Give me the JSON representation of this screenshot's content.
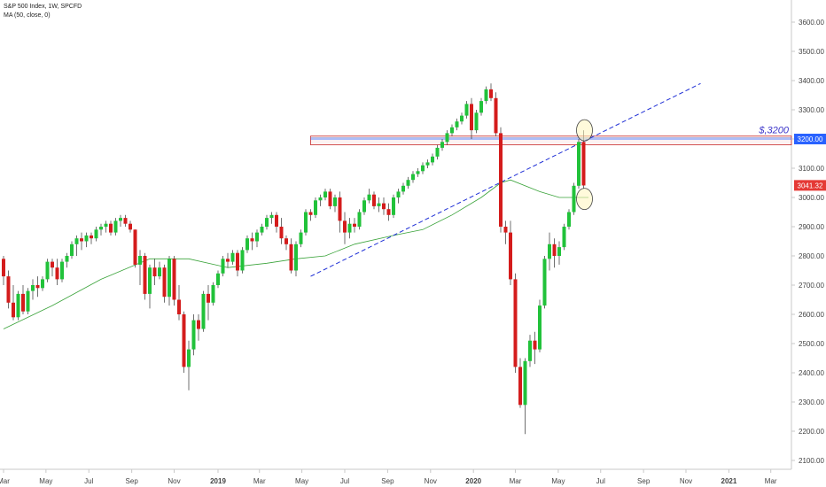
{
  "chart_data": {
    "type": "candlestick",
    "legend_lines": [
      "S&P 500 Index, 1W, SPCFD",
      "MA (50, close, 0)"
    ],
    "y_axis": {
      "range": [
        2050,
        3690
      ],
      "ticks": [
        2100,
        2200,
        2300,
        2400,
        2500,
        2600,
        2700,
        2800,
        2900,
        3000,
        3100,
        3200,
        3300,
        3400,
        3500,
        3600
      ],
      "tick_labels": [
        "2100.00",
        "2200.00",
        "2300.00",
        "2400.00",
        "2500.00",
        "2600.00",
        "2700.00",
        "2800.00",
        "2900.00",
        "3000.00",
        "3100.00",
        "3200.00",
        "3300.00",
        "3400.00",
        "3500.00",
        "3600.00"
      ]
    },
    "x_axis": {
      "labels": [
        {
          "text": "Mar",
          "week": 0,
          "bold": false
        },
        {
          "text": "May",
          "week": 8.7,
          "bold": false
        },
        {
          "text": "Jul",
          "week": 17.5,
          "bold": false
        },
        {
          "text": "Sep",
          "week": 26.3,
          "bold": false
        },
        {
          "text": "Nov",
          "week": 35,
          "bold": false
        },
        {
          "text": "2019",
          "week": 44,
          "bold": true
        },
        {
          "text": "Mar",
          "week": 52.5,
          "bold": false
        },
        {
          "text": "May",
          "week": 61.2,
          "bold": false
        },
        {
          "text": "Jul",
          "week": 70,
          "bold": false
        },
        {
          "text": "Sep",
          "week": 78.8,
          "bold": false
        },
        {
          "text": "Nov",
          "week": 87.6,
          "bold": false
        },
        {
          "text": "2020",
          "week": 96.4,
          "bold": true
        },
        {
          "text": "Mar",
          "week": 105,
          "bold": false
        },
        {
          "text": "May",
          "week": 113.8,
          "bold": false
        },
        {
          "text": "Jul",
          "week": 122.5,
          "bold": false
        },
        {
          "text": "Sep",
          "week": 131.3,
          "bold": false
        },
        {
          "text": "Nov",
          "week": 140,
          "bold": false
        },
        {
          "text": "2021",
          "week": 148.8,
          "bold": true
        },
        {
          "text": "Mar",
          "week": 157.4,
          "bold": false
        }
      ]
    },
    "candles": [
      [
        2790,
        2800,
        2700,
        2730
      ],
      [
        2730,
        2750,
        2620,
        2640
      ],
      [
        2640,
        2700,
        2580,
        2590
      ],
      [
        2590,
        2680,
        2580,
        2670
      ],
      [
        2670,
        2700,
        2600,
        2610
      ],
      [
        2610,
        2690,
        2600,
        2680
      ],
      [
        2680,
        2720,
        2650,
        2700
      ],
      [
        2700,
        2730,
        2660,
        2690
      ],
      [
        2690,
        2730,
        2680,
        2720
      ],
      [
        2720,
        2790,
        2710,
        2780
      ],
      [
        2780,
        2790,
        2730,
        2760
      ],
      [
        2760,
        2790,
        2700,
        2720
      ],
      [
        2720,
        2790,
        2710,
        2780
      ],
      [
        2780,
        2810,
        2760,
        2800
      ],
      [
        2800,
        2850,
        2790,
        2840
      ],
      [
        2840,
        2870,
        2800,
        2860
      ],
      [
        2860,
        2880,
        2820,
        2850
      ],
      [
        2850,
        2880,
        2830,
        2870
      ],
      [
        2870,
        2880,
        2840,
        2860
      ],
      [
        2860,
        2900,
        2850,
        2890
      ],
      [
        2890,
        2910,
        2870,
        2900
      ],
      [
        2900,
        2920,
        2880,
        2910
      ],
      [
        2910,
        2920,
        2870,
        2880
      ],
      [
        2880,
        2930,
        2870,
        2920
      ],
      [
        2920,
        2940,
        2900,
        2930
      ],
      [
        2930,
        2940,
        2900,
        2910
      ],
      [
        2910,
        2920,
        2880,
        2890
      ],
      [
        2890,
        2890,
        2760,
        2770
      ],
      [
        2770,
        2820,
        2700,
        2800
      ],
      [
        2800,
        2810,
        2650,
        2670
      ],
      [
        2670,
        2770,
        2620,
        2760
      ],
      [
        2760,
        2790,
        2700,
        2730
      ],
      [
        2730,
        2780,
        2720,
        2760
      ],
      [
        2760,
        2770,
        2640,
        2660
      ],
      [
        2660,
        2800,
        2630,
        2790
      ],
      [
        2790,
        2800,
        2630,
        2650
      ],
      [
        2650,
        2700,
        2580,
        2600
      ],
      [
        2600,
        2610,
        2400,
        2420
      ],
      [
        2420,
        2510,
        2340,
        2480
      ],
      [
        2480,
        2600,
        2460,
        2580
      ],
      [
        2580,
        2600,
        2510,
        2550
      ],
      [
        2550,
        2680,
        2540,
        2670
      ],
      [
        2670,
        2700,
        2580,
        2640
      ],
      [
        2640,
        2710,
        2630,
        2700
      ],
      [
        2700,
        2750,
        2690,
        2740
      ],
      [
        2740,
        2800,
        2730,
        2790
      ],
      [
        2790,
        2810,
        2760,
        2780
      ],
      [
        2780,
        2820,
        2770,
        2810
      ],
      [
        2810,
        2820,
        2730,
        2750
      ],
      [
        2750,
        2830,
        2740,
        2820
      ],
      [
        2820,
        2870,
        2810,
        2860
      ],
      [
        2860,
        2880,
        2820,
        2850
      ],
      [
        2850,
        2890,
        2830,
        2880
      ],
      [
        2880,
        2910,
        2870,
        2900
      ],
      [
        2900,
        2940,
        2890,
        2930
      ],
      [
        2930,
        2950,
        2910,
        2940
      ],
      [
        2940,
        2950,
        2880,
        2900
      ],
      [
        2900,
        2930,
        2840,
        2860
      ],
      [
        2860,
        2870,
        2820,
        2840
      ],
      [
        2840,
        2860,
        2740,
        2750
      ],
      [
        2750,
        2850,
        2730,
        2840
      ],
      [
        2840,
        2890,
        2830,
        2880
      ],
      [
        2880,
        2960,
        2870,
        2950
      ],
      [
        2950,
        2960,
        2920,
        2940
      ],
      [
        2940,
        3000,
        2930,
        2990
      ],
      [
        2990,
        3010,
        2970,
        3000
      ],
      [
        3000,
        3030,
        2990,
        3020
      ],
      [
        3020,
        3030,
        2960,
        2970
      ],
      [
        2970,
        3010,
        2950,
        3000
      ],
      [
        3000,
        3020,
        2880,
        2920
      ],
      [
        2920,
        2950,
        2840,
        2880
      ],
      [
        2880,
        2930,
        2860,
        2910
      ],
      [
        2910,
        2930,
        2880,
        2900
      ],
      [
        2900,
        2960,
        2890,
        2950
      ],
      [
        2950,
        3000,
        2940,
        2990
      ],
      [
        2990,
        3030,
        2980,
        3010
      ],
      [
        3010,
        3020,
        2960,
        2970
      ],
      [
        2970,
        3000,
        2950,
        2980
      ],
      [
        2980,
        3000,
        2940,
        2960
      ],
      [
        2960,
        2980,
        2920,
        2940
      ],
      [
        2940,
        3010,
        2930,
        3000
      ],
      [
        3000,
        3030,
        2980,
        3020
      ],
      [
        3020,
        3050,
        3010,
        3040
      ],
      [
        3040,
        3070,
        3030,
        3060
      ],
      [
        3060,
        3090,
        3050,
        3080
      ],
      [
        3080,
        3100,
        3070,
        3090
      ],
      [
        3090,
        3120,
        3080,
        3110
      ],
      [
        3110,
        3130,
        3100,
        3120
      ],
      [
        3120,
        3150,
        3110,
        3140
      ],
      [
        3140,
        3180,
        3130,
        3170
      ],
      [
        3170,
        3200,
        3160,
        3190
      ],
      [
        3190,
        3230,
        3180,
        3220
      ],
      [
        3220,
        3250,
        3210,
        3240
      ],
      [
        3240,
        3270,
        3230,
        3260
      ],
      [
        3260,
        3290,
        3250,
        3280
      ],
      [
        3280,
        3330,
        3270,
        3320
      ],
      [
        3320,
        3340,
        3200,
        3230
      ],
      [
        3230,
        3300,
        3220,
        3290
      ],
      [
        3290,
        3340,
        3280,
        3330
      ],
      [
        3330,
        3380,
        3320,
        3370
      ],
      [
        3370,
        3390,
        3330,
        3340
      ],
      [
        3340,
        3360,
        3210,
        3220
      ],
      [
        3220,
        3240,
        2880,
        2900
      ],
      [
        2900,
        2920,
        2840,
        2880
      ],
      [
        2880,
        2920,
        2700,
        2720
      ],
      [
        2720,
        2740,
        2400,
        2420
      ],
      [
        2420,
        2450,
        2280,
        2290
      ],
      [
        2290,
        2450,
        2190,
        2440
      ],
      [
        2440,
        2530,
        2420,
        2510
      ],
      [
        2510,
        2540,
        2430,
        2480
      ],
      [
        2480,
        2650,
        2470,
        2630
      ],
      [
        2630,
        2800,
        2620,
        2790
      ],
      [
        2790,
        2880,
        2750,
        2840
      ],
      [
        2840,
        2860,
        2760,
        2800
      ],
      [
        2800,
        2850,
        2770,
        2830
      ],
      [
        2830,
        2910,
        2820,
        2900
      ],
      [
        2900,
        2960,
        2890,
        2950
      ],
      [
        2950,
        3050,
        2940,
        3040
      ],
      [
        3040,
        3200,
        3030,
        3190
      ],
      [
        3190,
        3230,
        3030,
        3041
      ]
    ],
    "moving_average": {
      "name": "MA (50, close, 0)",
      "points": [
        [
          0,
          2550
        ],
        [
          10,
          2630
        ],
        [
          20,
          2720
        ],
        [
          30,
          2790
        ],
        [
          38,
          2790
        ],
        [
          46,
          2760
        ],
        [
          54,
          2775
        ],
        [
          60,
          2790
        ],
        [
          66,
          2800
        ],
        [
          72,
          2840
        ],
        [
          80,
          2870
        ],
        [
          86,
          2890
        ],
        [
          92,
          2940
        ],
        [
          98,
          3000
        ],
        [
          102,
          3050
        ],
        [
          104,
          3060
        ],
        [
          110,
          3020
        ],
        [
          114,
          3000
        ],
        [
          120,
          3000
        ]
      ]
    },
    "horizontal_band": {
      "top": 3210,
      "bottom": 3180,
      "from_week": 63,
      "label": "$,3200"
    },
    "trendline": {
      "from": [
        63,
        2730
      ],
      "to": [
        143,
        3390
      ]
    },
    "circles": [
      {
        "week": 119,
        "value": 3230
      },
      {
        "week": 119,
        "value": 2995
      }
    ],
    "price_tags": [
      {
        "value": 3200,
        "label": "3200.00",
        "color": "#2962ff"
      },
      {
        "value": 3041.32,
        "label": "3041.32",
        "color": "#e53935"
      }
    ],
    "colors": {
      "up": "#21c23a",
      "down": "#d41c1c",
      "ma": "#3aa33a",
      "trend": "#1f2fd6",
      "band": "#c72a2a",
      "axis_text": "#444444"
    },
    "grid": false
  }
}
